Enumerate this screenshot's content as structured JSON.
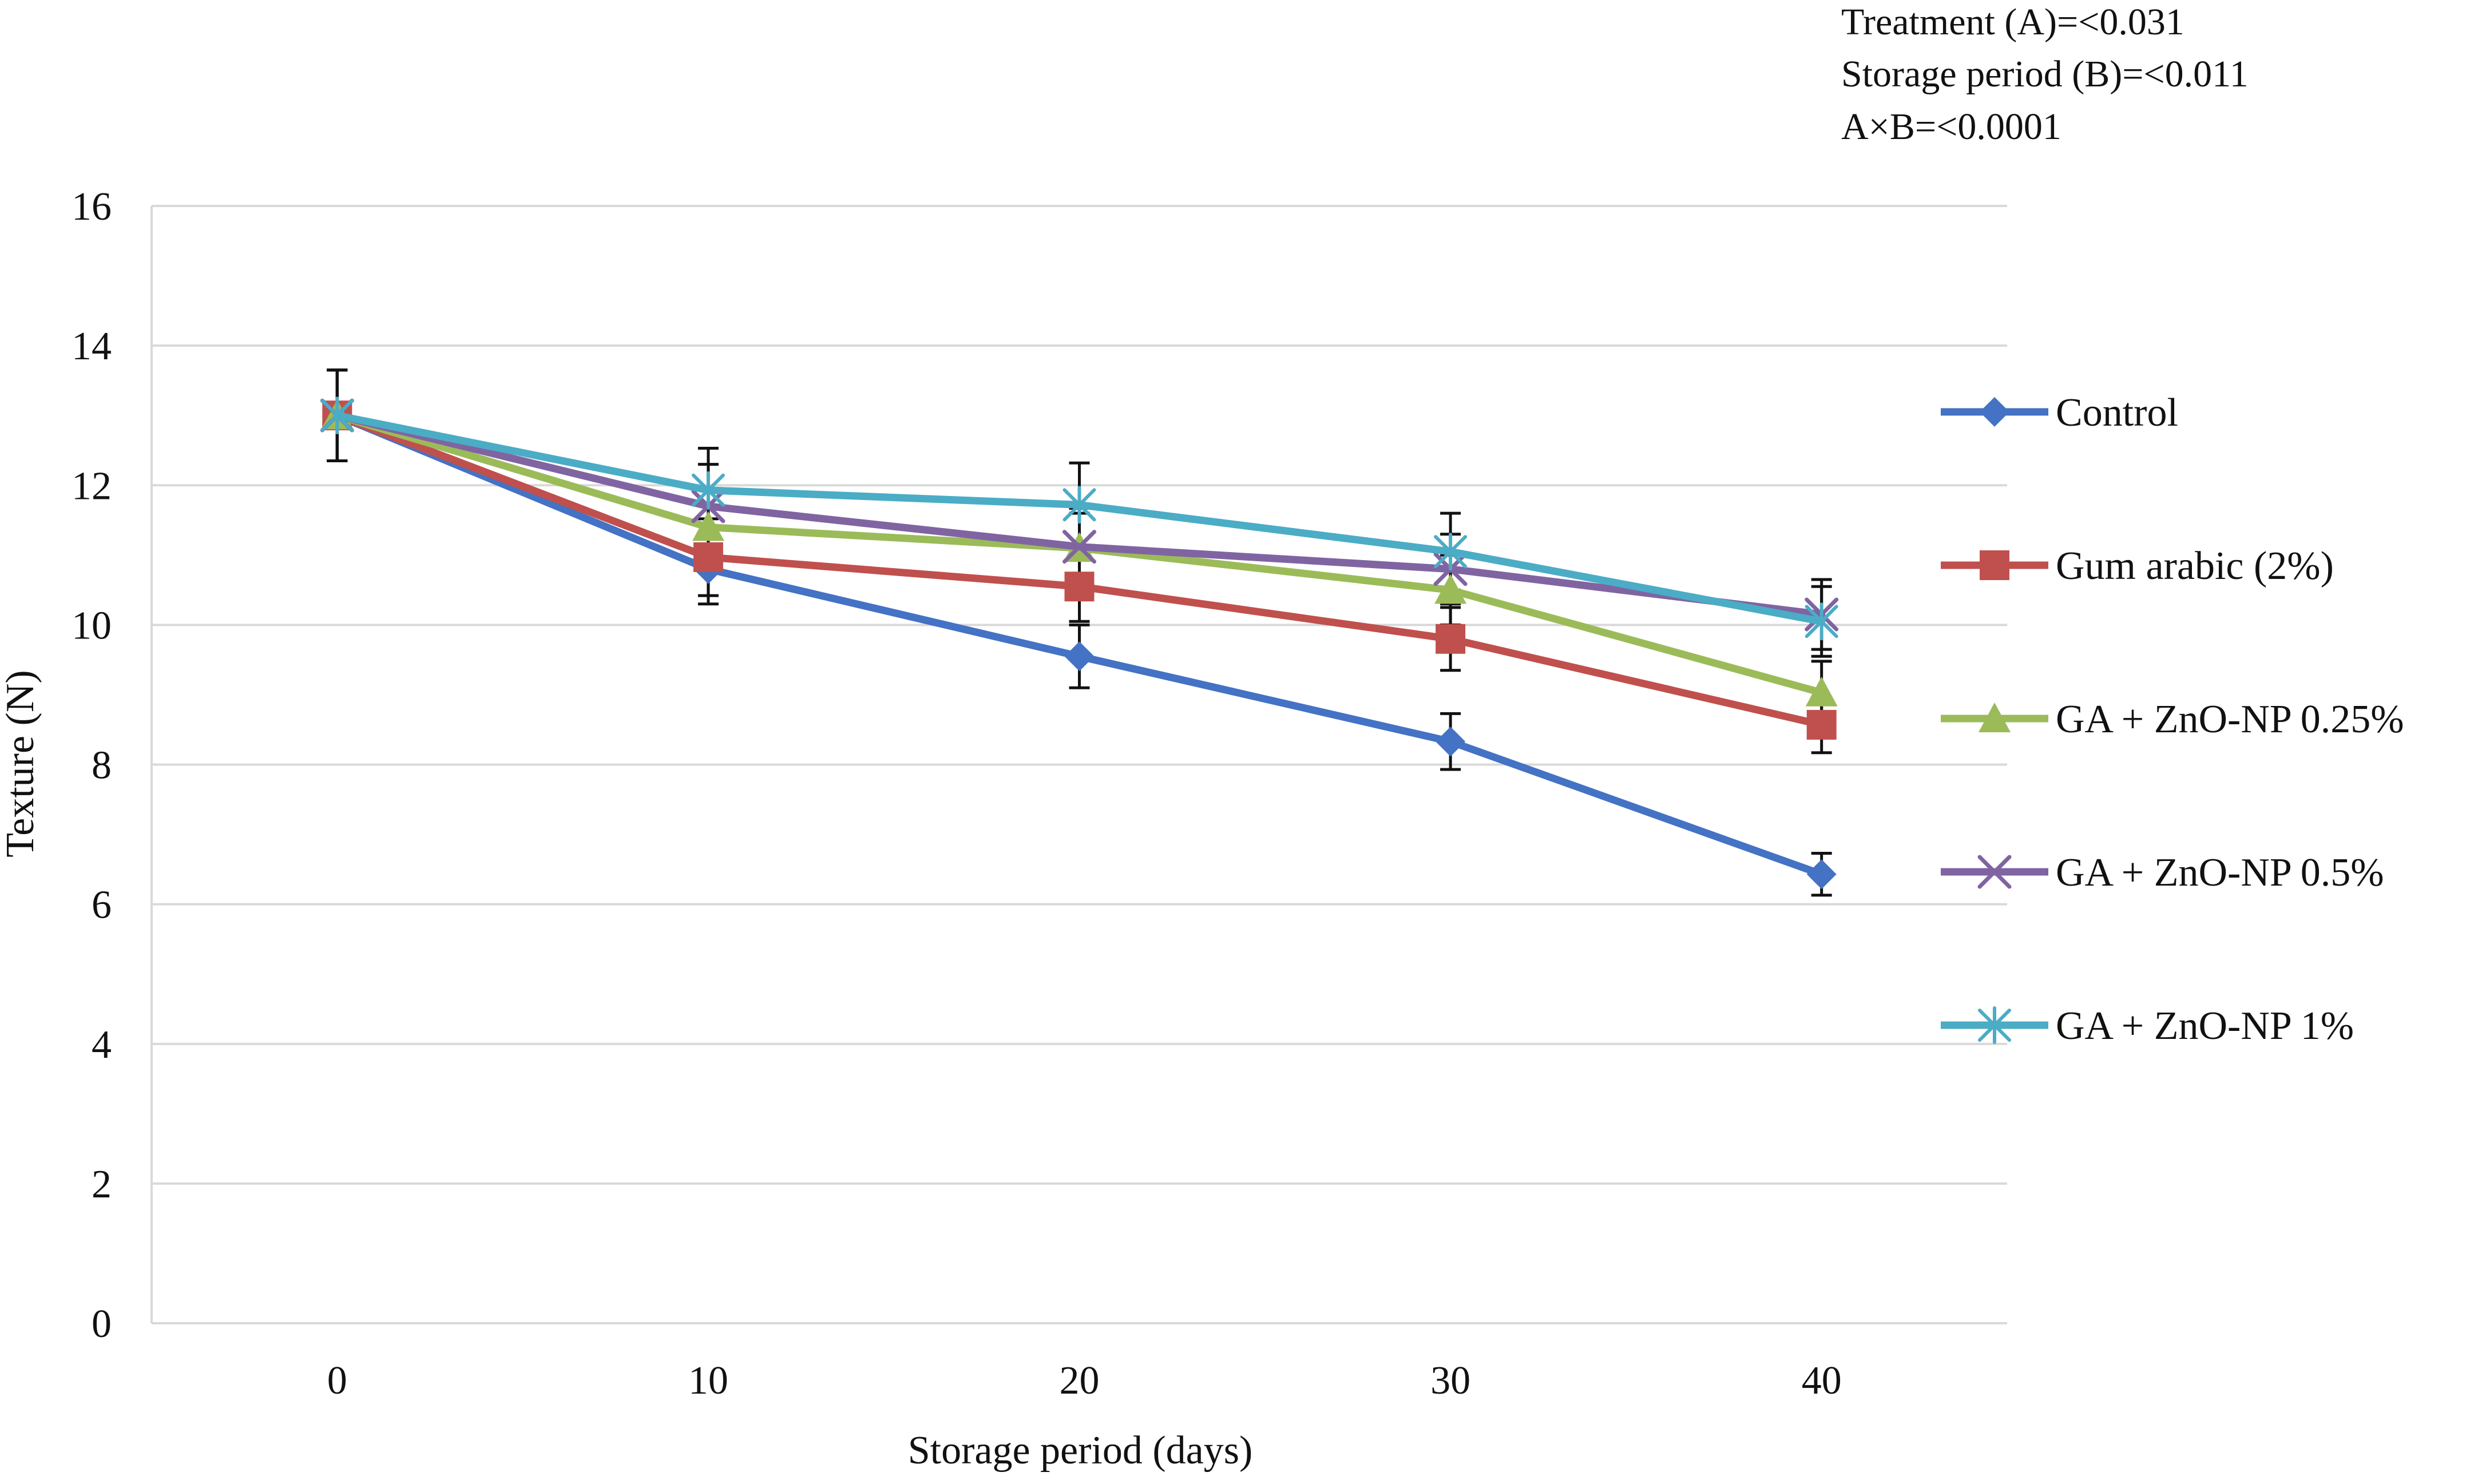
{
  "stats": {
    "line1": "Treatment (A)=<0.031",
    "line2": "Storage period (B)=<0.011",
    "line3": "A×B=<0.0001"
  },
  "chart_data": {
    "type": "line",
    "title": "",
    "xlabel": "Storage period (days)",
    "ylabel": "Texture (N)",
    "categories": [
      "0",
      "10",
      "20",
      "30",
      "40"
    ],
    "ylim": [
      0,
      16
    ],
    "yticks": [
      0,
      2,
      4,
      6,
      8,
      10,
      12,
      14,
      16
    ],
    "grid": true,
    "legend_position": "right",
    "series": [
      {
        "name": "Control",
        "color": "#4472C4",
        "marker": "diamond",
        "values": [
          13.0,
          10.8,
          9.55,
          8.33,
          6.43
        ],
        "errors": [
          0.65,
          0.5,
          0.45,
          0.4,
          0.3
        ]
      },
      {
        "name": "Gum arabic (2%)",
        "color": "#C0504D",
        "marker": "square",
        "values": [
          13.0,
          10.97,
          10.55,
          9.8,
          8.57
        ],
        "errors": [
          0.65,
          0.55,
          0.5,
          0.45,
          0.4
        ]
      },
      {
        "name": "GA + ZnO-NP 0.25%",
        "color": "#9BBB59",
        "marker": "triangle",
        "values": [
          13.0,
          11.4,
          11.1,
          10.5,
          9.03
        ],
        "errors": [
          0.65,
          0.55,
          0.5,
          0.5,
          0.45
        ]
      },
      {
        "name": "GA + ZnO-NP 0.5%",
        "color": "#8064A2",
        "marker": "x",
        "values": [
          13.0,
          11.7,
          11.12,
          10.8,
          10.15
        ],
        "errors": [
          0.65,
          0.6,
          0.55,
          0.5,
          0.5
        ]
      },
      {
        "name": "GA + ZnO-NP 1%",
        "color": "#4BACC6",
        "marker": "star",
        "values": [
          13.0,
          11.93,
          11.72,
          11.05,
          10.05
        ],
        "errors": [
          0.65,
          0.6,
          0.6,
          0.55,
          0.5
        ]
      }
    ]
  }
}
